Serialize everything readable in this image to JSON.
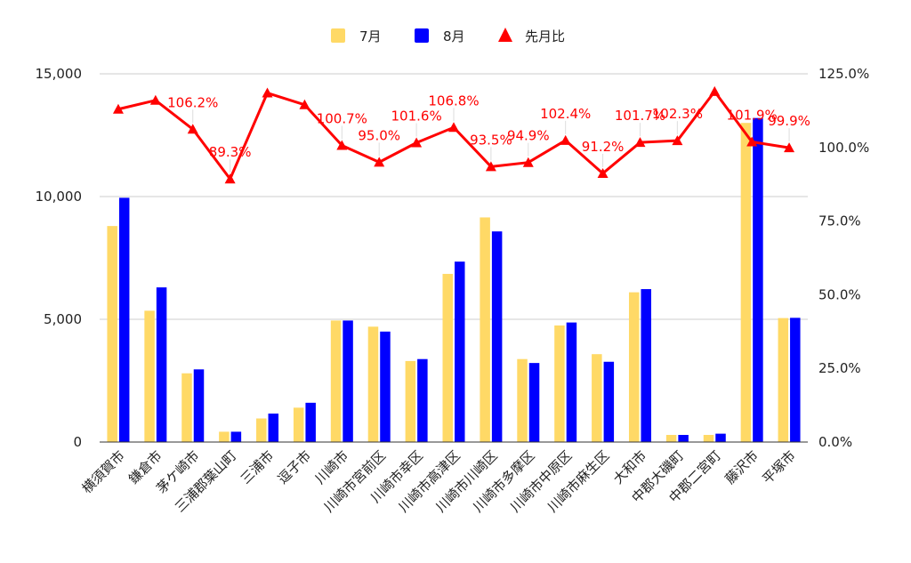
{
  "colors": {
    "july": "#FFD966",
    "august": "#0000FF",
    "ratio": "#FF0000",
    "grid": "#CCCCCC",
    "axis": "#333333"
  },
  "chart_data": {
    "type": "bar",
    "categories": [
      "横須賀市",
      "鎌倉市",
      "茅ケ崎市",
      "三浦郡葉山町",
      "三浦市",
      "逗子市",
      "川崎市",
      "川崎市宮前区",
      "川崎市幸区",
      "川崎市高津区",
      "川崎市川崎区",
      "川崎市多摩区",
      "川崎市中原区",
      "川崎市麻生区",
      "大和市",
      "中郡大磯町",
      "中郡二宮町",
      "藤沢市",
      "平塚市"
    ],
    "series": [
      {
        "name": "7月",
        "type": "bar",
        "axis": "left",
        "values": [
          8800,
          5350,
          2800,
          420,
          960,
          1400,
          4950,
          4700,
          3300,
          6850,
          9150,
          3380,
          4750,
          3580,
          6100,
          290,
          290,
          13000,
          5050
        ]
      },
      {
        "name": "8月",
        "type": "bar",
        "axis": "left",
        "values": [
          9950,
          6300,
          2960,
          420,
          1160,
          1600,
          4950,
          4500,
          3380,
          7350,
          8580,
          3220,
          4870,
          3270,
          6230,
          290,
          340,
          13200,
          5060
        ]
      },
      {
        "name": "先月比",
        "type": "line",
        "marker": "triangle",
        "axis": "right",
        "values": [
          113.0,
          116.0,
          106.2,
          89.3,
          118.5,
          114.5,
          100.7,
          95.0,
          101.6,
          106.8,
          93.5,
          94.9,
          102.4,
          91.2,
          101.7,
          102.3,
          119.0,
          101.9,
          99.9
        ],
        "labels": [
          "",
          "",
          "106.2%",
          "89.3%",
          "",
          "",
          "100.7%",
          "95.0%",
          "101.6%",
          "106.8%",
          "93.5%",
          "94.9%",
          "102.4%",
          "91.2%",
          "101.7%",
          "102.3%",
          "",
          "101.9%",
          "99.9%"
        ]
      }
    ],
    "y_left": {
      "range": [
        0,
        15000
      ],
      "ticks": [
        0,
        5000,
        10000,
        15000
      ],
      "tick_labels": [
        "0",
        "5,000",
        "10,000",
        "15,000"
      ]
    },
    "y_right": {
      "range": [
        0,
        125
      ],
      "ticks": [
        0,
        25,
        50,
        75,
        100,
        125
      ],
      "tick_labels": [
        "0.0%",
        "25.0%",
        "50.0%",
        "75.0%",
        "100.0%",
        "125.0%"
      ]
    },
    "title": "",
    "xlabel": "",
    "ylabel": "",
    "grid": true,
    "legend": "top-center"
  }
}
